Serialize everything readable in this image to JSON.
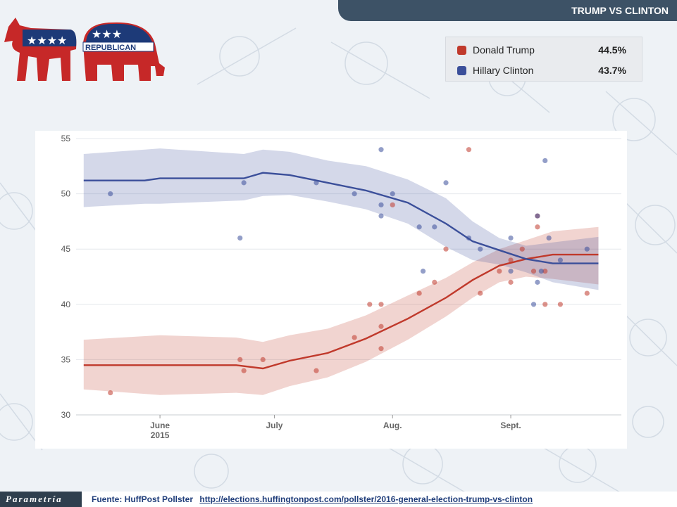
{
  "header": {
    "title": "TRUMP VS CLINTON"
  },
  "logos": {
    "democrat_icon": "donkey-icon",
    "republican_icon": "elephant-icon",
    "republican_text": "REPUBLICAN"
  },
  "legend": [
    {
      "name": "Donald Trump",
      "value": "44.5%",
      "color": "#c0392b"
    },
    {
      "name": "Hillary Clinton",
      "value": "43.7%",
      "color": "#3b4f9a"
    }
  ],
  "footer": {
    "brand": "Parametría",
    "source_label": "Fuente: HuffPost Pollster",
    "source_url": "http://elections.huffingtonpost.com/pollster/2016-general-election-trump-vs-clinton"
  },
  "chart_data": {
    "type": "line",
    "title": "",
    "xlabel": "",
    "ylabel": "",
    "ylim": [
      30,
      55
    ],
    "xlim": [
      "2015-05-10",
      "2015-09-30"
    ],
    "yticks": [
      30,
      35,
      40,
      45,
      50,
      55
    ],
    "xticks": [
      {
        "date": "2015-06-01",
        "label": "June",
        "sublabel": "2015"
      },
      {
        "date": "2015-07-01",
        "label": "July",
        "sublabel": ""
      },
      {
        "date": "2015-08-01",
        "label": "Aug.",
        "sublabel": ""
      },
      {
        "date": "2015-09-01",
        "label": "Sept.",
        "sublabel": ""
      }
    ],
    "grid": true,
    "series": [
      {
        "name": "Donald Trump",
        "color": "#c0392b",
        "trend": [
          [
            "2015-05-12",
            34.5
          ],
          [
            "2015-06-01",
            34.5
          ],
          [
            "2015-06-21",
            34.5
          ],
          [
            "2015-06-28",
            34.2
          ],
          [
            "2015-07-05",
            34.9
          ],
          [
            "2015-07-15",
            35.6
          ],
          [
            "2015-07-25",
            36.9
          ],
          [
            "2015-08-05",
            38.7
          ],
          [
            "2015-08-15",
            40.6
          ],
          [
            "2015-08-22",
            42.2
          ],
          [
            "2015-08-29",
            43.5
          ],
          [
            "2015-09-05",
            44.1
          ],
          [
            "2015-09-12",
            44.5
          ],
          [
            "2015-09-24",
            44.5
          ]
        ],
        "band": [
          [
            "2015-05-12",
            32.3,
            36.8
          ],
          [
            "2015-06-01",
            31.8,
            37.2
          ],
          [
            "2015-06-21",
            32.0,
            37.0
          ],
          [
            "2015-06-28",
            31.8,
            36.6
          ],
          [
            "2015-07-05",
            32.6,
            37.2
          ],
          [
            "2015-07-15",
            33.4,
            37.8
          ],
          [
            "2015-07-25",
            34.8,
            39.0
          ],
          [
            "2015-08-05",
            36.8,
            40.8
          ],
          [
            "2015-08-15",
            38.9,
            42.4
          ],
          [
            "2015-08-22",
            40.6,
            43.8
          ],
          [
            "2015-08-29",
            42.0,
            45.0
          ],
          [
            "2015-09-05",
            42.5,
            45.8
          ],
          [
            "2015-09-12",
            42.3,
            46.6
          ],
          [
            "2015-09-24",
            41.8,
            47.0
          ]
        ],
        "points": [
          [
            "2015-05-19",
            32
          ],
          [
            "2015-06-22",
            35
          ],
          [
            "2015-06-23",
            34
          ],
          [
            "2015-06-28",
            35
          ],
          [
            "2015-07-12",
            34
          ],
          [
            "2015-07-22",
            37
          ],
          [
            "2015-07-26",
            40
          ],
          [
            "2015-07-29",
            38
          ],
          [
            "2015-07-29",
            36
          ],
          [
            "2015-07-29",
            40
          ],
          [
            "2015-08-01",
            49
          ],
          [
            "2015-08-08",
            41
          ],
          [
            "2015-08-12",
            42
          ],
          [
            "2015-08-15",
            45
          ],
          [
            "2015-08-21",
            54
          ],
          [
            "2015-08-24",
            41
          ],
          [
            "2015-08-29",
            43
          ],
          [
            "2015-09-01",
            42
          ],
          [
            "2015-09-01",
            44
          ],
          [
            "2015-09-04",
            45
          ],
          [
            "2015-09-07",
            43
          ],
          [
            "2015-09-08",
            48
          ],
          [
            "2015-09-08",
            47
          ],
          [
            "2015-09-10",
            40
          ],
          [
            "2015-09-10",
            43
          ],
          [
            "2015-09-14",
            40
          ],
          [
            "2015-09-21",
            41
          ]
        ]
      },
      {
        "name": "Hillary Clinton",
        "color": "#3b4f9a",
        "trend": [
          [
            "2015-05-12",
            51.2
          ],
          [
            "2015-05-28",
            51.2
          ],
          [
            "2015-06-01",
            51.4
          ],
          [
            "2015-06-23",
            51.4
          ],
          [
            "2015-06-28",
            51.9
          ],
          [
            "2015-07-05",
            51.7
          ],
          [
            "2015-07-15",
            51.0
          ],
          [
            "2015-07-25",
            50.3
          ],
          [
            "2015-08-05",
            49.2
          ],
          [
            "2015-08-15",
            47.3
          ],
          [
            "2015-08-22",
            45.7
          ],
          [
            "2015-08-29",
            44.9
          ],
          [
            "2015-09-05",
            44.1
          ],
          [
            "2015-09-12",
            43.7
          ],
          [
            "2015-09-24",
            43.7
          ]
        ],
        "band": [
          [
            "2015-05-12",
            48.8,
            53.6
          ],
          [
            "2015-05-28",
            49.1,
            54.0
          ],
          [
            "2015-06-01",
            49.1,
            54.1
          ],
          [
            "2015-06-23",
            49.4,
            53.6
          ],
          [
            "2015-06-28",
            49.8,
            54.0
          ],
          [
            "2015-07-05",
            49.9,
            53.8
          ],
          [
            "2015-07-15",
            49.3,
            53.0
          ],
          [
            "2015-07-25",
            48.6,
            52.5
          ],
          [
            "2015-08-05",
            47.3,
            51.3
          ],
          [
            "2015-08-15",
            45.2,
            49.6
          ],
          [
            "2015-08-22",
            44.0,
            47.5
          ],
          [
            "2015-08-29",
            43.6,
            46.0
          ],
          [
            "2015-09-05",
            42.9,
            45.3
          ],
          [
            "2015-09-12",
            42.0,
            45.6
          ],
          [
            "2015-09-24",
            41.3,
            46.1
          ]
        ],
        "points": [
          [
            "2015-05-19",
            50
          ],
          [
            "2015-06-22",
            46
          ],
          [
            "2015-06-23",
            51
          ],
          [
            "2015-07-12",
            51
          ],
          [
            "2015-07-22",
            50
          ],
          [
            "2015-07-29",
            54
          ],
          [
            "2015-07-29",
            49
          ],
          [
            "2015-07-29",
            48
          ],
          [
            "2015-08-01",
            50
          ],
          [
            "2015-08-08",
            47
          ],
          [
            "2015-08-09",
            43
          ],
          [
            "2015-08-12",
            47
          ],
          [
            "2015-08-15",
            51
          ],
          [
            "2015-08-21",
            46
          ],
          [
            "2015-08-24",
            45
          ],
          [
            "2015-09-01",
            46
          ],
          [
            "2015-09-01",
            43
          ],
          [
            "2015-09-07",
            40
          ],
          [
            "2015-09-08",
            42
          ],
          [
            "2015-09-08",
            48
          ],
          [
            "2015-09-09",
            43
          ],
          [
            "2015-09-10",
            53
          ],
          [
            "2015-09-11",
            46
          ],
          [
            "2015-09-14",
            44
          ],
          [
            "2015-09-21",
            45
          ]
        ]
      }
    ]
  }
}
